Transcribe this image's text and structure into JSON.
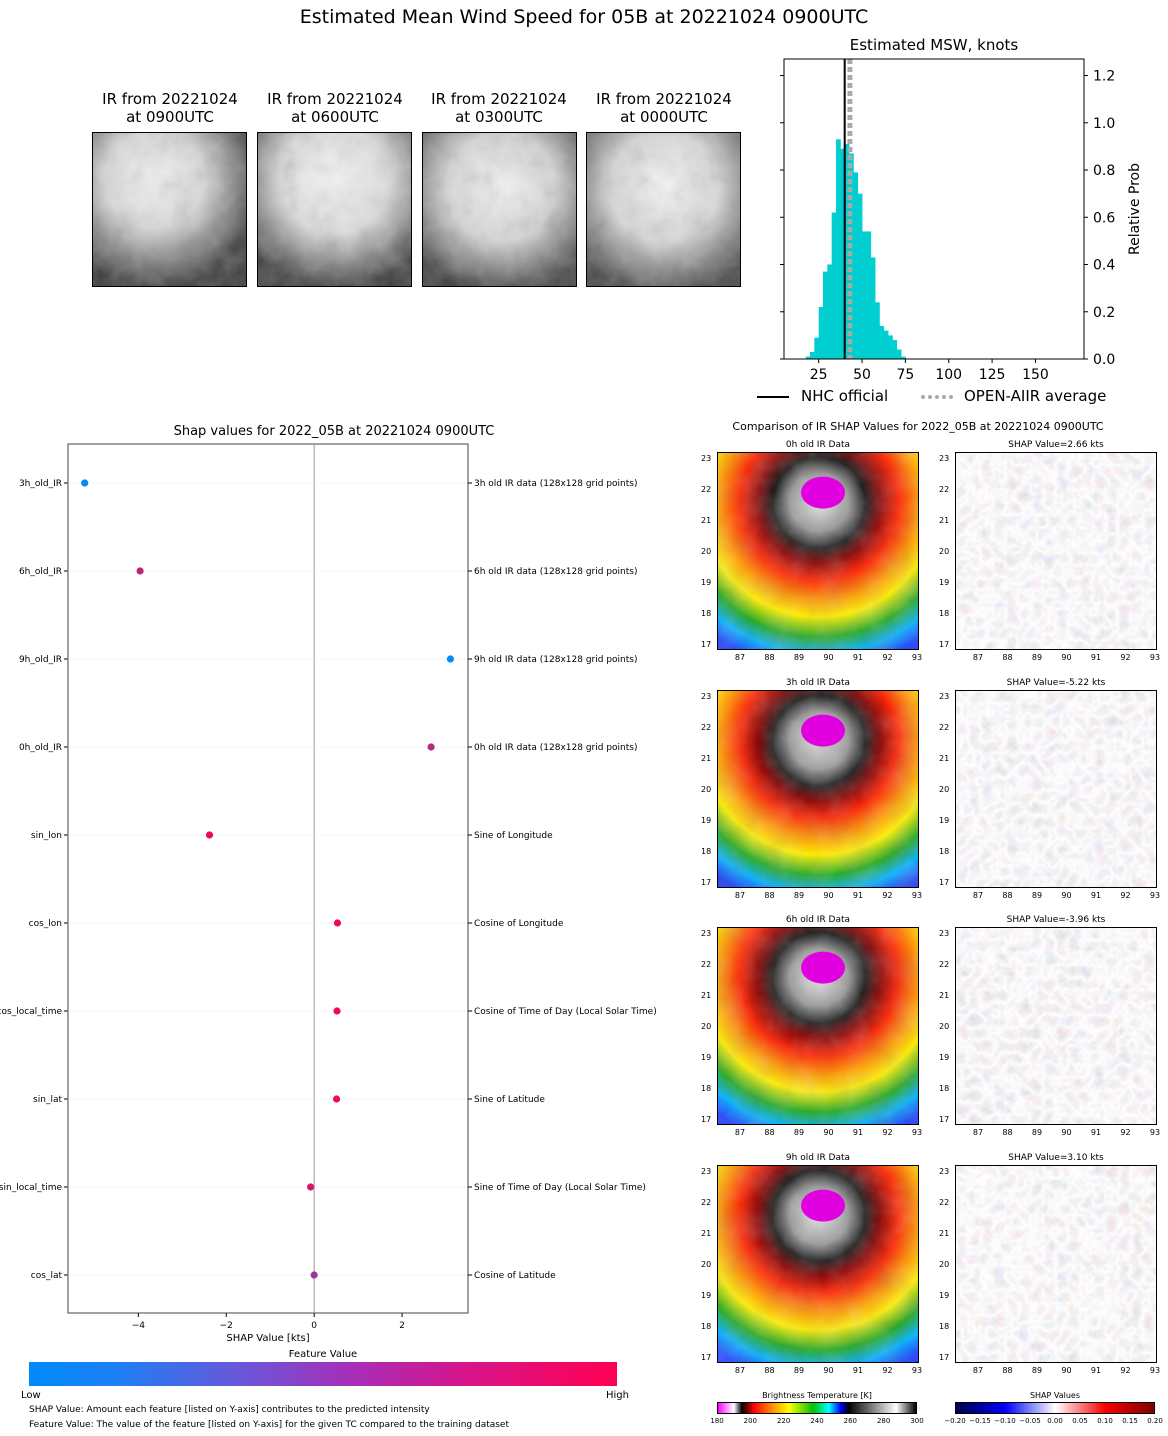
{
  "main_title": "Estimated Mean Wind Speed for 05B at 20221024 0900UTC",
  "ir_panels": [
    {
      "line1": "IR from 20221024",
      "line2": "at 0900UTC"
    },
    {
      "line1": "IR from 20221024",
      "line2": "at 0600UTC"
    },
    {
      "line1": "IR from 20221024",
      "line2": "at 0300UTC"
    },
    {
      "line1": "IR from 20221024",
      "line2": "at 0000UTC"
    }
  ],
  "chart_data": [
    {
      "type": "bar",
      "title": "Estimated MSW, knots",
      "ylabel": "Relative Prob",
      "xlim": [
        5,
        178
      ],
      "ylim": [
        0,
        1.27
      ],
      "x_ticks": [
        25,
        50,
        75,
        100,
        125,
        150
      ],
      "y_ticks": [
        0.0,
        0.2,
        0.4,
        0.6,
        0.8,
        1.0,
        1.2
      ],
      "bin_width": 2.5,
      "bins_start": [
        17.5,
        20,
        22.5,
        25,
        27.5,
        30,
        32.5,
        35,
        37.5,
        40,
        42.5,
        45,
        47.5,
        50,
        52.5,
        55,
        57.5,
        60,
        62.5,
        65,
        67.5,
        70,
        72.5
      ],
      "values": [
        0.01,
        0.03,
        0.09,
        0.22,
        0.37,
        0.4,
        0.62,
        0.93,
        0.89,
        0.91,
        0.87,
        0.79,
        0.7,
        0.54,
        0.54,
        0.43,
        0.24,
        0.14,
        0.12,
        0.1,
        0.08,
        0.04,
        0.01
      ],
      "nhc_official": 40,
      "open_aiir_average": 43,
      "legend": [
        "NHC official",
        "OPEN-AIIR average"
      ],
      "colors": {
        "bars": "#00CED1",
        "nhc": "#000000",
        "avg": "#A9A9A9"
      }
    },
    {
      "type": "scatter",
      "title": "Shap values for 2022_05B at 20221024 0900UTC",
      "xlabel": "SHAP Value [kts]",
      "xlim": [
        -5.6,
        3.5
      ],
      "x_ticks": [
        -4,
        -2,
        0,
        2
      ],
      "features": [
        "3h_old_IR",
        "6h_old_IR",
        "9h_old_IR",
        "0h_old_IR",
        "sin_lon",
        "cos_lon",
        "cos_local_time",
        "sin_lat",
        "sin_local_time",
        "cos_lat"
      ],
      "descriptions": [
        "3h old IR data (128x128 grid points)",
        "6h old IR data (128x128 grid points)",
        "9h old IR data (128x128 grid points)",
        "0h old IR data (128x128 grid points)",
        "Sine of Longitude",
        "Cosine of Longitude",
        "Cosine of Time of Day (Local Solar Time)",
        "Sine of Latitude",
        "Sine of Time of Day (Local Solar Time)",
        "Cosine of Latitude"
      ],
      "shap_values": [
        -5.22,
        -3.96,
        3.1,
        2.66,
        -2.38,
        0.53,
        0.52,
        0.51,
        -0.08,
        0.0
      ],
      "feature_values": [
        0.0,
        0.75,
        0.0,
        0.7,
        0.95,
        0.95,
        0.95,
        0.95,
        0.85,
        0.6
      ]
    }
  ],
  "feature_colorbar": {
    "title": "Feature Value",
    "low": "Low",
    "high": "High",
    "low_color": "#008BFB",
    "high_color": "#FF0052"
  },
  "footnotes": [
    "SHAP Value: Amount each feature [listed on Y-axis] contributes to the predicted intensity",
    "Feature Value: The value of the feature [listed on Y-axis] for the given TC compared to the training dataset"
  ],
  "comparison": {
    "title": "Comparison of IR SHAP Values for 2022_05B at 20221024 0900UTC",
    "rows": [
      {
        "ir_title": "0h old IR Data",
        "shap_title": "SHAP Value=2.66 kts"
      },
      {
        "ir_title": "3h old IR Data",
        "shap_title": "SHAP Value=-5.22 kts"
      },
      {
        "ir_title": "6h old IR Data",
        "shap_title": "SHAP Value=-3.96 kts"
      },
      {
        "ir_title": "9h old IR Data",
        "shap_title": "SHAP Value=3.10 kts"
      }
    ],
    "x_ticks": [
      "87",
      "88",
      "89",
      "90",
      "91",
      "92",
      "93"
    ],
    "y_ticks": [
      "23",
      "22",
      "21",
      "20",
      "19",
      "18",
      "17"
    ],
    "bt_colorbar": {
      "title": "Brightness Temperature [K]",
      "ticks": [
        "180",
        "200",
        "220",
        "240",
        "260",
        "280",
        "300"
      ]
    },
    "shap_colorbar": {
      "title": "SHAP Values",
      "ticks": [
        "−0.20",
        "−0.15",
        "−0.10",
        "−0.05",
        "0.00",
        "0.05",
        "0.10",
        "0.15",
        "0.20"
      ]
    }
  }
}
